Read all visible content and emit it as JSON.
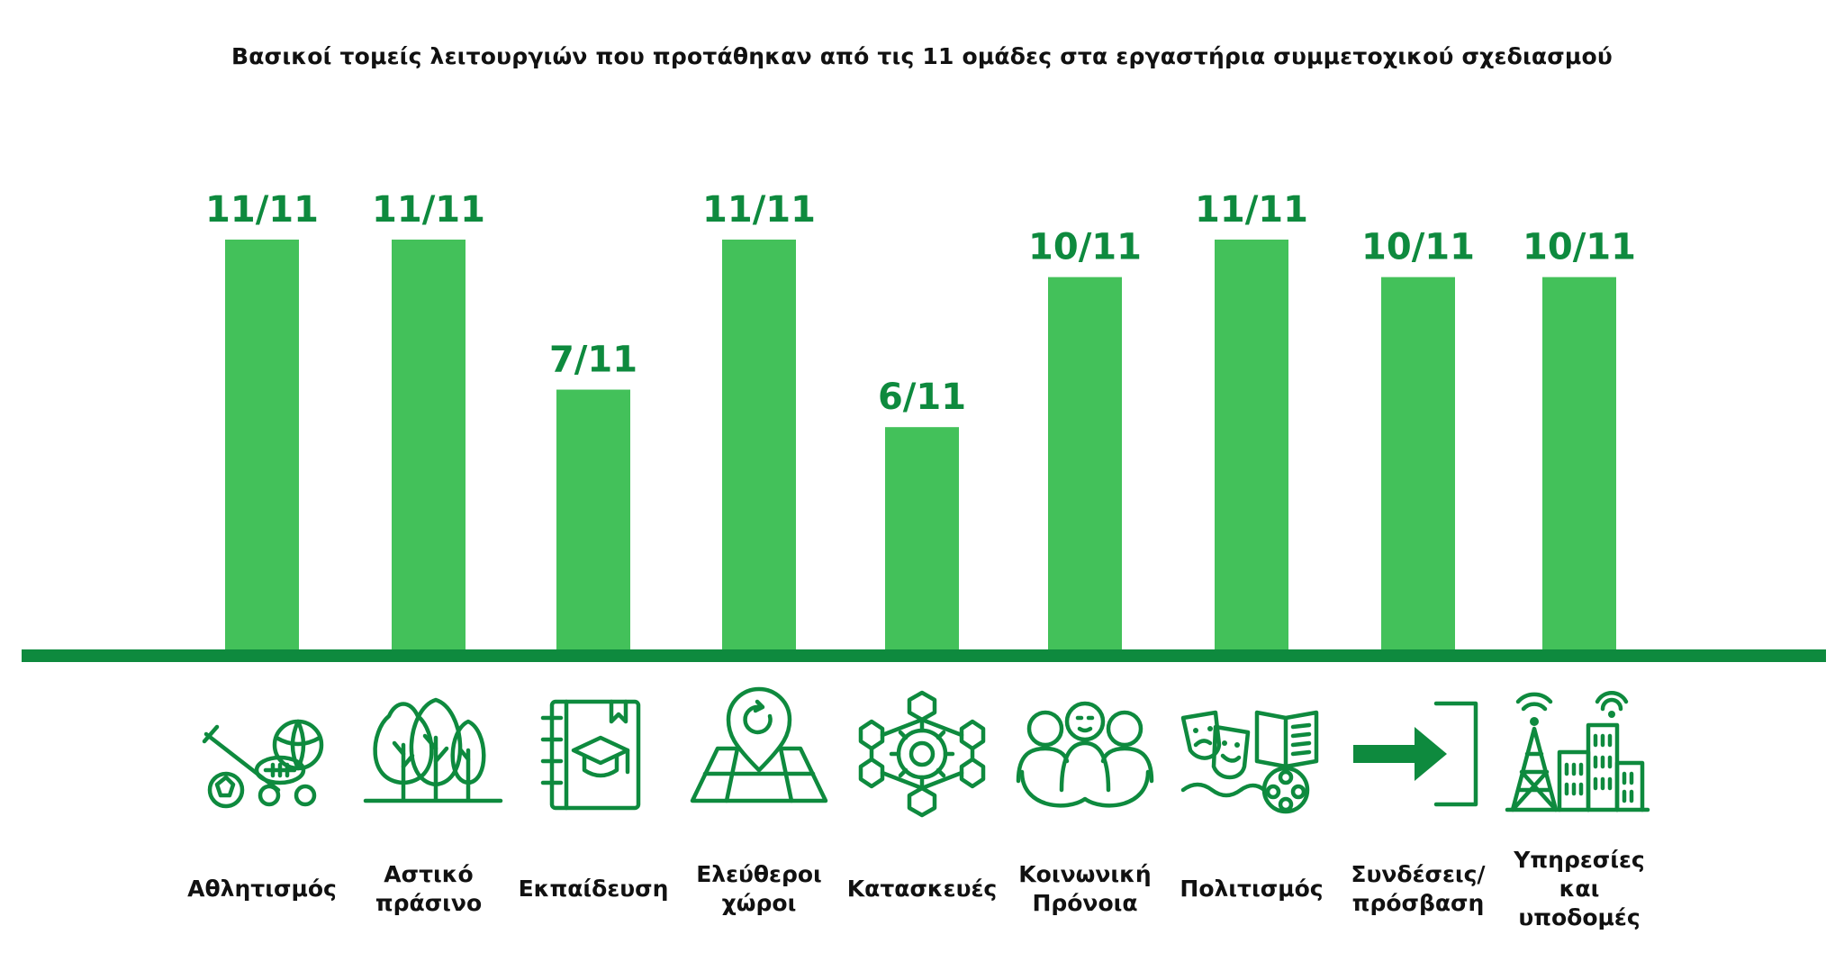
{
  "chart_data": {
    "type": "bar",
    "title": "Βασικοί τομείς λειτουργιών που προτάθηκαν από τις 11 ομάδες στα εργαστήρια συμμετοχικού σχεδιασμού",
    "categories": [
      [
        "Αθλητισμός"
      ],
      [
        "Αστικό",
        "πράσινο"
      ],
      [
        "Εκπαίδευση"
      ],
      [
        "Ελεύθεροι",
        "χώροι"
      ],
      [
        "Κατασκευές"
      ],
      [
        "Κοινωνική",
        "Πρόνοια"
      ],
      [
        "Πολιτισμός"
      ],
      [
        "Συνδέσεις/",
        "πρόσβαση"
      ],
      [
        "Υπηρεσίες",
        "και",
        "υποδομές"
      ]
    ],
    "values": [
      11,
      11,
      7,
      11,
      6,
      10,
      11,
      10,
      10
    ],
    "data_labels": [
      "11/11",
      "11/11",
      "7/11",
      "11/11",
      "6/11",
      "10/11",
      "11/11",
      "10/11",
      "10/11"
    ],
    "ylim": [
      0,
      11
    ],
    "xlabel": "",
    "ylabel": "",
    "grid": false,
    "bar_color": "#43c15a",
    "label_color": "#0e8a3e",
    "baseline_color": "#0e8a3e",
    "icons": [
      "sports-icon",
      "trees-icon",
      "education-book-icon",
      "map-pin-icon",
      "construction-network-icon",
      "social-care-people-icon",
      "culture-theatre-icon",
      "access-arrow-door-icon",
      "infrastructure-city-icon"
    ]
  }
}
